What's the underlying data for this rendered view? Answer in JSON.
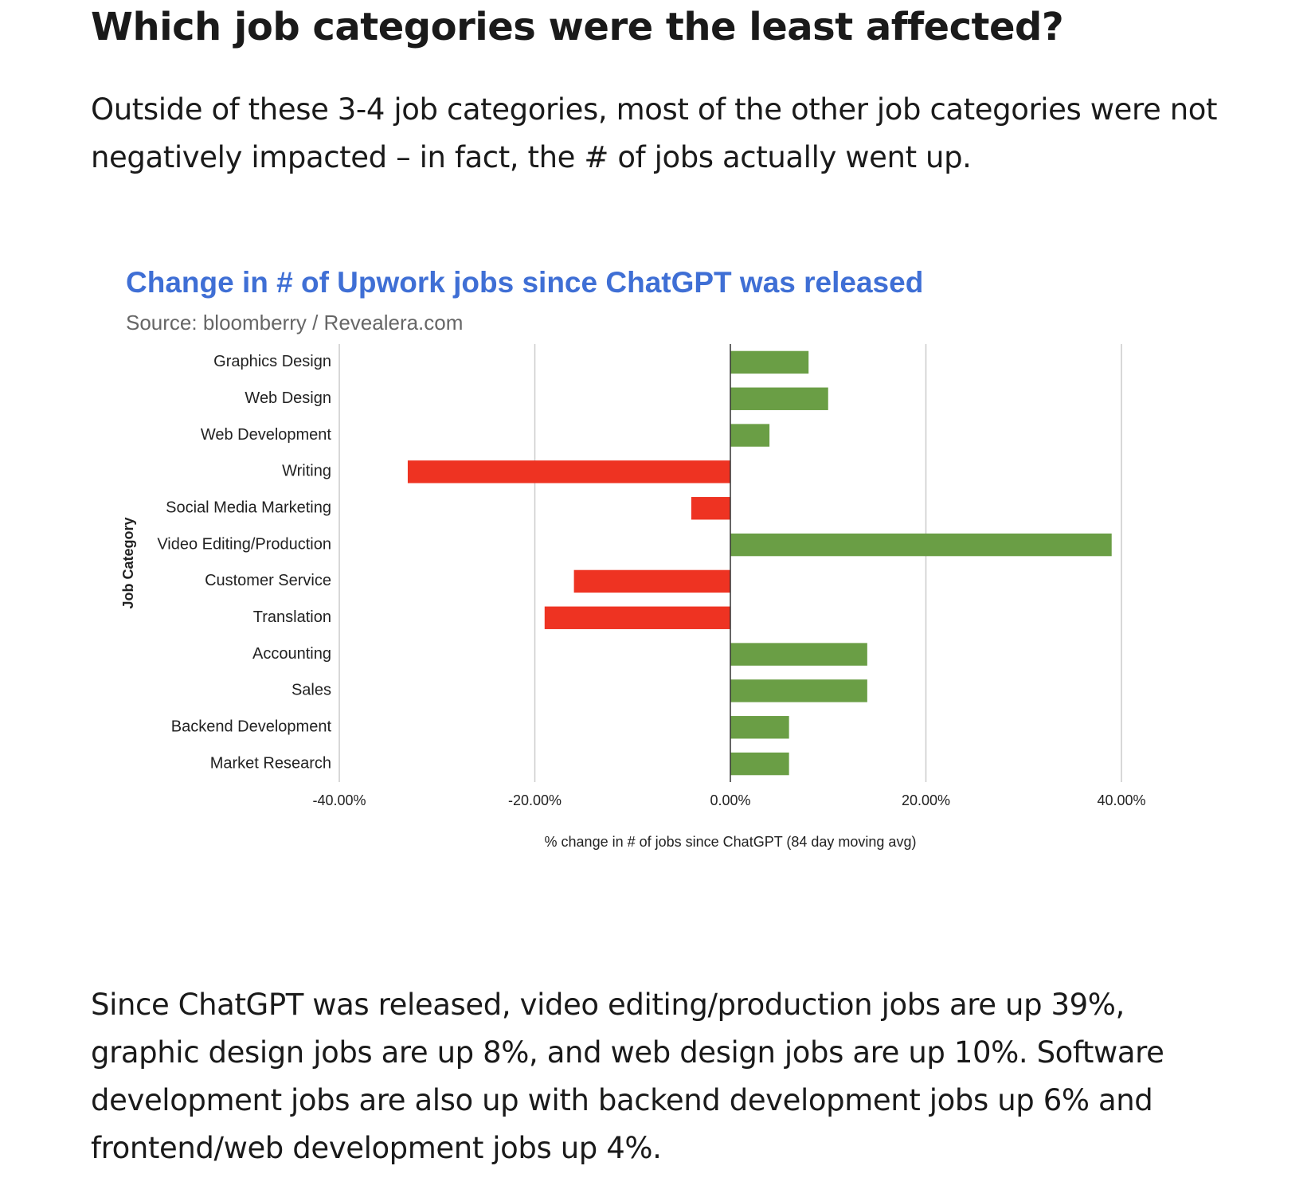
{
  "article": {
    "heading": "Which job categories were the least affected?",
    "intro": "Outside of these 3-4 job categories, most of the other job categories were not negatively impacted – in fact, the # of jobs actually went up.",
    "conclusion": "Since ChatGPT was released, video editing/production jobs are up 39%, graphic design jobs are up 8%, and web design jobs are up 10%. Software development jobs are also up with backend development jobs up 6% and frontend/web development jobs up 4%."
  },
  "chart_data": {
    "type": "bar",
    "orientation": "horizontal",
    "title": "Change in # of Upwork jobs since ChatGPT was released",
    "subtitle": "Source: bloomberry / Revealera.com",
    "xlabel": "% change in # of jobs since ChatGPT (84 day moving avg)",
    "ylabel": "Job Category",
    "xlim": [
      -40,
      40
    ],
    "xticks": [
      -40,
      -20,
      0,
      20,
      40
    ],
    "xtick_labels": [
      "-40.00%",
      "-20.00%",
      "0.00%",
      "20.00%",
      "40.00%"
    ],
    "categories": [
      "Graphics Design",
      "Web Design",
      "Web Development",
      "Writing",
      "Social Media Marketing",
      "Video Editing/Production",
      "Customer Service",
      "Translation",
      "Accounting",
      "Sales",
      "Backend Development",
      "Market Research"
    ],
    "values": [
      8,
      10,
      4,
      -33,
      -4,
      39,
      -16,
      -19,
      14,
      14,
      6,
      6
    ],
    "colors": {
      "positive": "#6a9e45",
      "negative": "#ee3322"
    },
    "grid": true,
    "legend": "none"
  }
}
